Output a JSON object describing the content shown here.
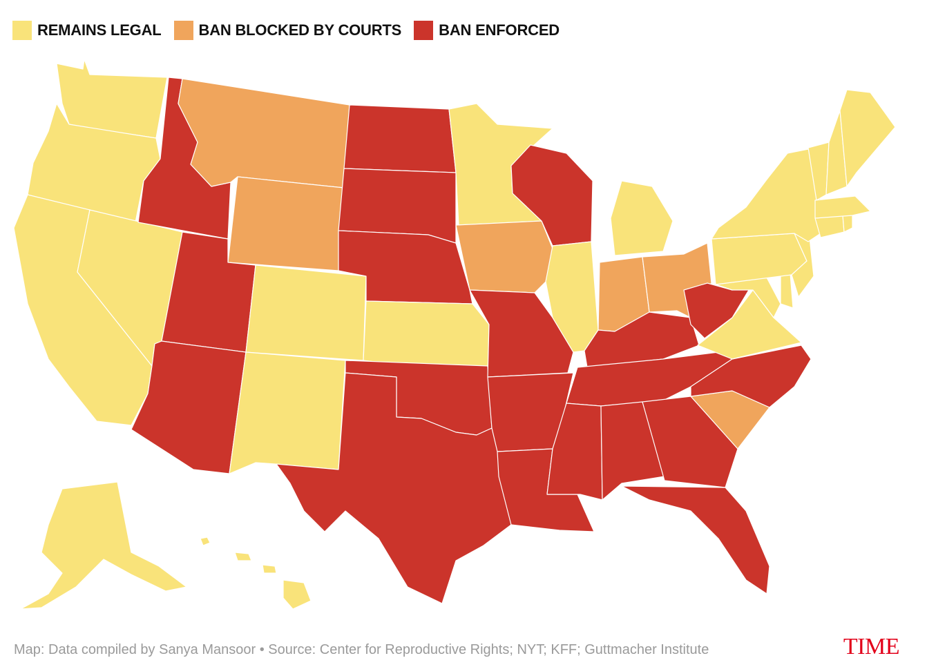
{
  "legend": [
    {
      "key": "legal",
      "label": "REMAINS LEGAL",
      "color": "#f9e37a"
    },
    {
      "key": "blocked",
      "label": "BAN BLOCKED BY COURTS",
      "color": "#f0a55c"
    },
    {
      "key": "enforced",
      "label": "BAN ENFORCED",
      "color": "#cb342b"
    }
  ],
  "states": [
    {
      "name": "Washington",
      "status": "legal"
    },
    {
      "name": "Oregon",
      "status": "legal"
    },
    {
      "name": "California",
      "status": "legal"
    },
    {
      "name": "Nevada",
      "status": "legal"
    },
    {
      "name": "Idaho",
      "status": "enforced"
    },
    {
      "name": "Montana",
      "status": "blocked"
    },
    {
      "name": "Wyoming",
      "status": "blocked"
    },
    {
      "name": "Utah",
      "status": "enforced"
    },
    {
      "name": "Arizona",
      "status": "enforced"
    },
    {
      "name": "Colorado",
      "status": "legal"
    },
    {
      "name": "New Mexico",
      "status": "legal"
    },
    {
      "name": "North Dakota",
      "status": "enforced"
    },
    {
      "name": "South Dakota",
      "status": "enforced"
    },
    {
      "name": "Nebraska",
      "status": "enforced"
    },
    {
      "name": "Kansas",
      "status": "legal"
    },
    {
      "name": "Oklahoma",
      "status": "enforced"
    },
    {
      "name": "Texas",
      "status": "enforced"
    },
    {
      "name": "Minnesota",
      "status": "legal"
    },
    {
      "name": "Iowa",
      "status": "blocked"
    },
    {
      "name": "Missouri",
      "status": "enforced"
    },
    {
      "name": "Arkansas",
      "status": "enforced"
    },
    {
      "name": "Louisiana",
      "status": "enforced"
    },
    {
      "name": "Wisconsin",
      "status": "enforced"
    },
    {
      "name": "Illinois",
      "status": "legal"
    },
    {
      "name": "Michigan",
      "status": "legal"
    },
    {
      "name": "Indiana",
      "status": "blocked"
    },
    {
      "name": "Ohio",
      "status": "blocked"
    },
    {
      "name": "Kentucky",
      "status": "enforced"
    },
    {
      "name": "Tennessee",
      "status": "enforced"
    },
    {
      "name": "Mississippi",
      "status": "enforced"
    },
    {
      "name": "Alabama",
      "status": "enforced"
    },
    {
      "name": "Georgia",
      "status": "enforced"
    },
    {
      "name": "Florida",
      "status": "enforced"
    },
    {
      "name": "South Carolina",
      "status": "blocked"
    },
    {
      "name": "North Carolina",
      "status": "enforced"
    },
    {
      "name": "Virginia",
      "status": "legal"
    },
    {
      "name": "West Virginia",
      "status": "enforced"
    },
    {
      "name": "Maryland",
      "status": "legal"
    },
    {
      "name": "Delaware",
      "status": "legal"
    },
    {
      "name": "Pennsylvania",
      "status": "legal"
    },
    {
      "name": "New Jersey",
      "status": "legal"
    },
    {
      "name": "New York",
      "status": "legal"
    },
    {
      "name": "Connecticut",
      "status": "legal"
    },
    {
      "name": "Rhode Island",
      "status": "legal"
    },
    {
      "name": "Massachusetts",
      "status": "legal"
    },
    {
      "name": "Vermont",
      "status": "legal"
    },
    {
      "name": "New Hampshire",
      "status": "legal"
    },
    {
      "name": "Maine",
      "status": "legal"
    },
    {
      "name": "Alaska",
      "status": "legal"
    },
    {
      "name": "Hawaii",
      "status": "legal"
    }
  ],
  "footer": "Map: Data compiled by Sanya Mansoor • Source: Center for Reproductive Rights; NYT; KFF; Guttmacher Institute",
  "brand": "TIME"
}
